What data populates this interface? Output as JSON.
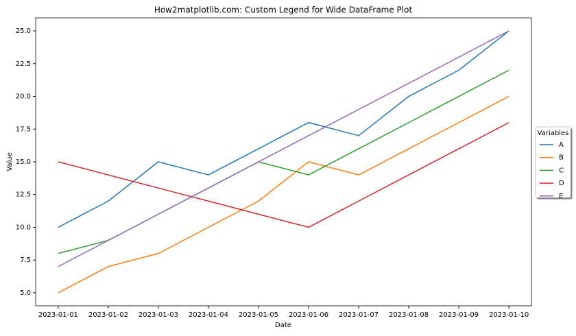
{
  "chart_data": {
    "type": "line",
    "title": "How2matplotlib.com: Custom Legend for Wide DataFrame Plot",
    "x_label": "Date",
    "y_label": "Value",
    "categories": [
      "2023-01-01",
      "2023-01-02",
      "2023-01-03",
      "2023-01-04",
      "2023-01-05",
      "2023-01-06",
      "2023-01-07",
      "2023-01-08",
      "2023-01-09",
      "2023-01-10"
    ],
    "series": [
      {
        "name": "A",
        "color": "#1f77b4",
        "values": [
          10,
          12,
          15,
          14,
          16,
          18,
          17,
          20,
          22,
          25
        ]
      },
      {
        "name": "B",
        "color": "#ff7f0e",
        "values": [
          5,
          7,
          8,
          10,
          12,
          15,
          14,
          16,
          18,
          20
        ]
      },
      {
        "name": "C",
        "color": "#2ca02c",
        "values": [
          8,
          9,
          11,
          13,
          15,
          14,
          16,
          18,
          20,
          22
        ]
      },
      {
        "name": "D",
        "color": "#d62728",
        "values": [
          15,
          14,
          13,
          12,
          11,
          10,
          12,
          14,
          16,
          18
        ]
      },
      {
        "name": "E",
        "color": "#9467bd",
        "values": [
          7,
          9,
          11,
          13,
          15,
          17,
          19,
          21,
          23,
          25
        ]
      }
    ],
    "legend_title": "Variables",
    "legend": "center right outside",
    "ylim": [
      4,
      26
    ],
    "yticks": [
      {
        "value": 5,
        "label": "5.0"
      },
      {
        "value": 7.5,
        "label": "7.5"
      },
      {
        "value": 10,
        "label": "10.0"
      },
      {
        "value": 12.5,
        "label": "12.5"
      },
      {
        "value": 15,
        "label": "15.0"
      },
      {
        "value": 17.5,
        "label": "17.5"
      },
      {
        "value": 20,
        "label": "20.0"
      },
      {
        "value": 22.5,
        "label": "22.5"
      },
      {
        "value": 25,
        "label": "25.0"
      }
    ],
    "grid": false
  }
}
